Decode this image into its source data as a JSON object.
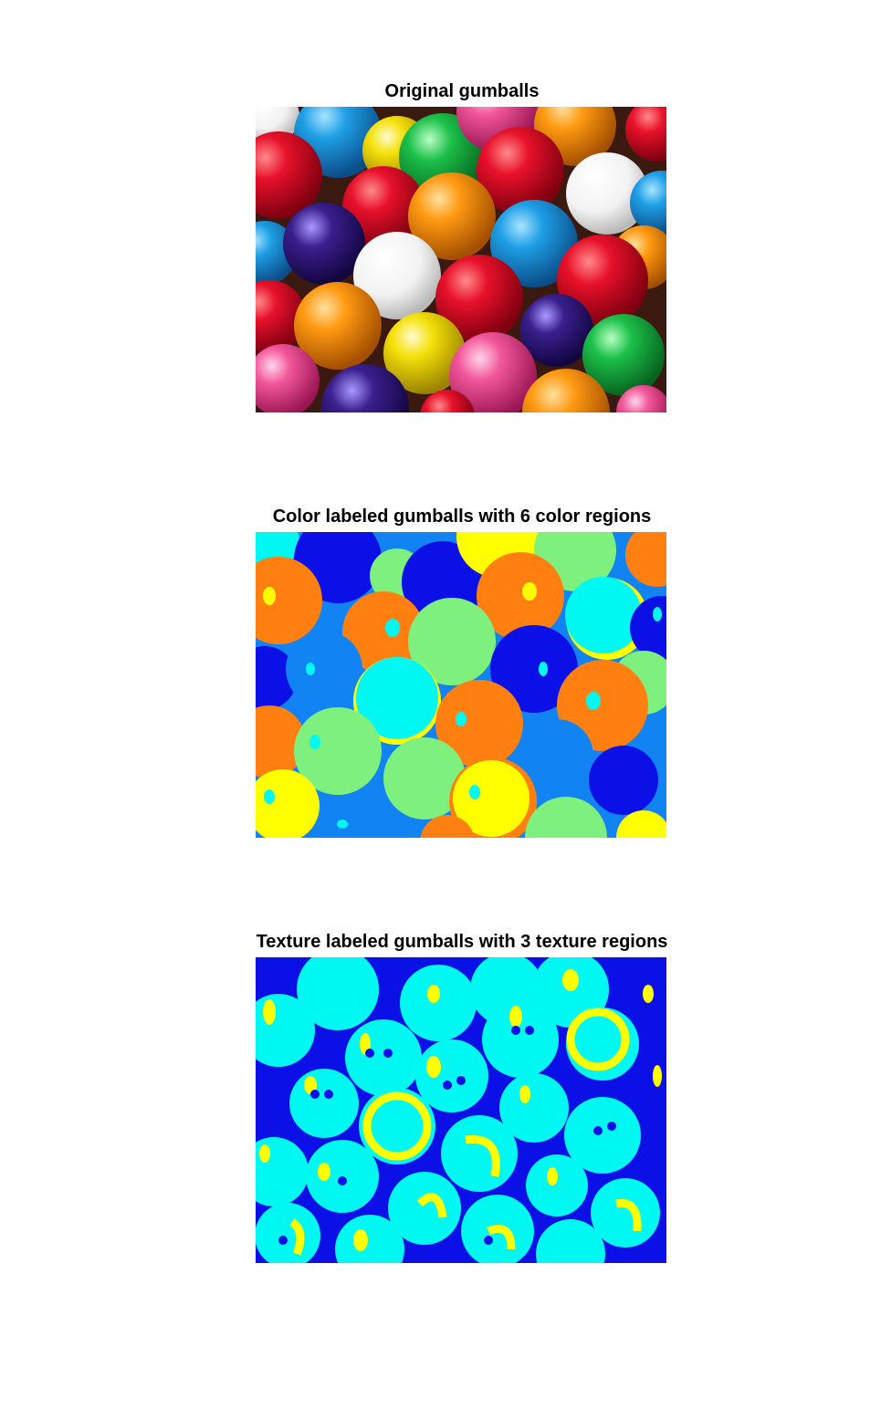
{
  "panels": [
    {
      "title": "Original gumballs"
    },
    {
      "title": "Color labeled gumballs with 6 color regions"
    },
    {
      "title": "Texture labeled gumballs with 3 texture regions"
    }
  ],
  "colors": {
    "background": "#ffffff",
    "label_blue_dark": "#0a10e6",
    "label_blue_mid": "#1283f2",
    "label_cyan": "#00f8f2",
    "label_green": "#7ef07e",
    "label_yellow": "#ffff00",
    "label_orange": "#ff8010"
  }
}
